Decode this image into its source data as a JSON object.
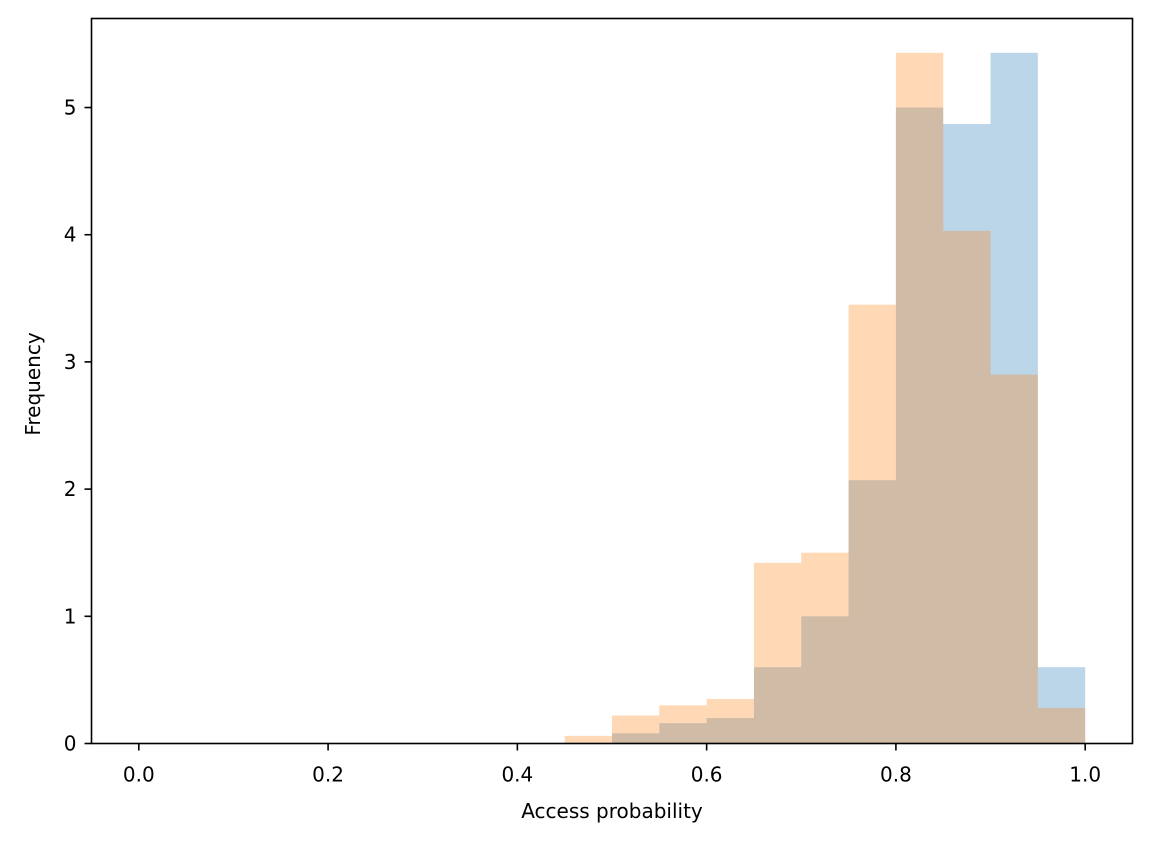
{
  "chart_data": {
    "type": "histogram",
    "xlabel": "Access probability",
    "ylabel": "Frequency",
    "xlim": [
      -0.05,
      1.05
    ],
    "ylim": [
      0,
      5.7
    ],
    "x_ticks": [
      0.0,
      0.2,
      0.4,
      0.6,
      0.8,
      1.0
    ],
    "x_tick_labels": [
      "0.0",
      "0.2",
      "0.4",
      "0.6",
      "0.8",
      "1.0"
    ],
    "y_ticks": [
      0,
      1,
      2,
      3,
      4,
      5
    ],
    "y_tick_labels": [
      "0",
      "1",
      "2",
      "3",
      "4",
      "5"
    ],
    "bin_edges": [
      0.0,
      0.05,
      0.1,
      0.15,
      0.2,
      0.25,
      0.3,
      0.35,
      0.4,
      0.45,
      0.5,
      0.55,
      0.6,
      0.65,
      0.7,
      0.75,
      0.8,
      0.85,
      0.9,
      0.95,
      1.0
    ],
    "series": [
      {
        "color": "#1f77b4",
        "alpha": 0.3,
        "values": [
          0,
          0,
          0,
          0,
          0,
          0,
          0,
          0,
          0,
          0,
          0.08,
          0.16,
          0.2,
          0.6,
          1.0,
          2.07,
          5.0,
          4.87,
          5.43,
          0.6
        ]
      },
      {
        "color": "#ff7f0e",
        "alpha": 0.3,
        "values": [
          0,
          0,
          0,
          0,
          0,
          0,
          0,
          0,
          0,
          0.06,
          0.22,
          0.3,
          0.35,
          1.42,
          1.5,
          3.45,
          5.43,
          4.03,
          2.9,
          0.28
        ]
      }
    ],
    "grid": false,
    "legend": "none"
  }
}
